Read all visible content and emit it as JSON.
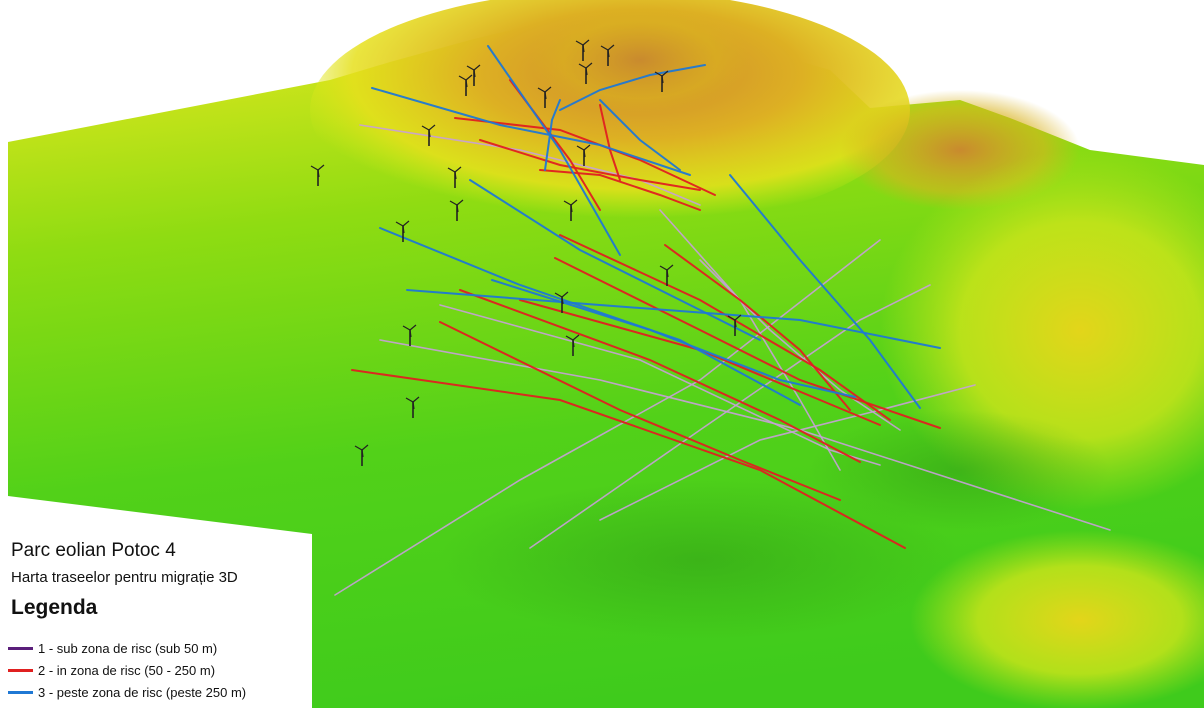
{
  "map": {
    "title": "Parc eolian Potoc 4",
    "subtitle": "Harta traseelor pentru migrație 3D",
    "legend_heading": "Legenda",
    "legend": [
      {
        "label": "1 - sub zona de risc (sub 50 m)",
        "color": "#5a1e7a"
      },
      {
        "label": "2 - in zona de risc (50 - 250 m)",
        "color": "#e02020"
      },
      {
        "label": "3 - peste zona de risc (peste 250 m)",
        "color": "#1f78d4"
      }
    ],
    "terrain_colors": {
      "low": "#3fd11c",
      "mid": "#d6e814",
      "high": "#d08a2a"
    },
    "turbine_icon": "wind-turbine-icon"
  }
}
